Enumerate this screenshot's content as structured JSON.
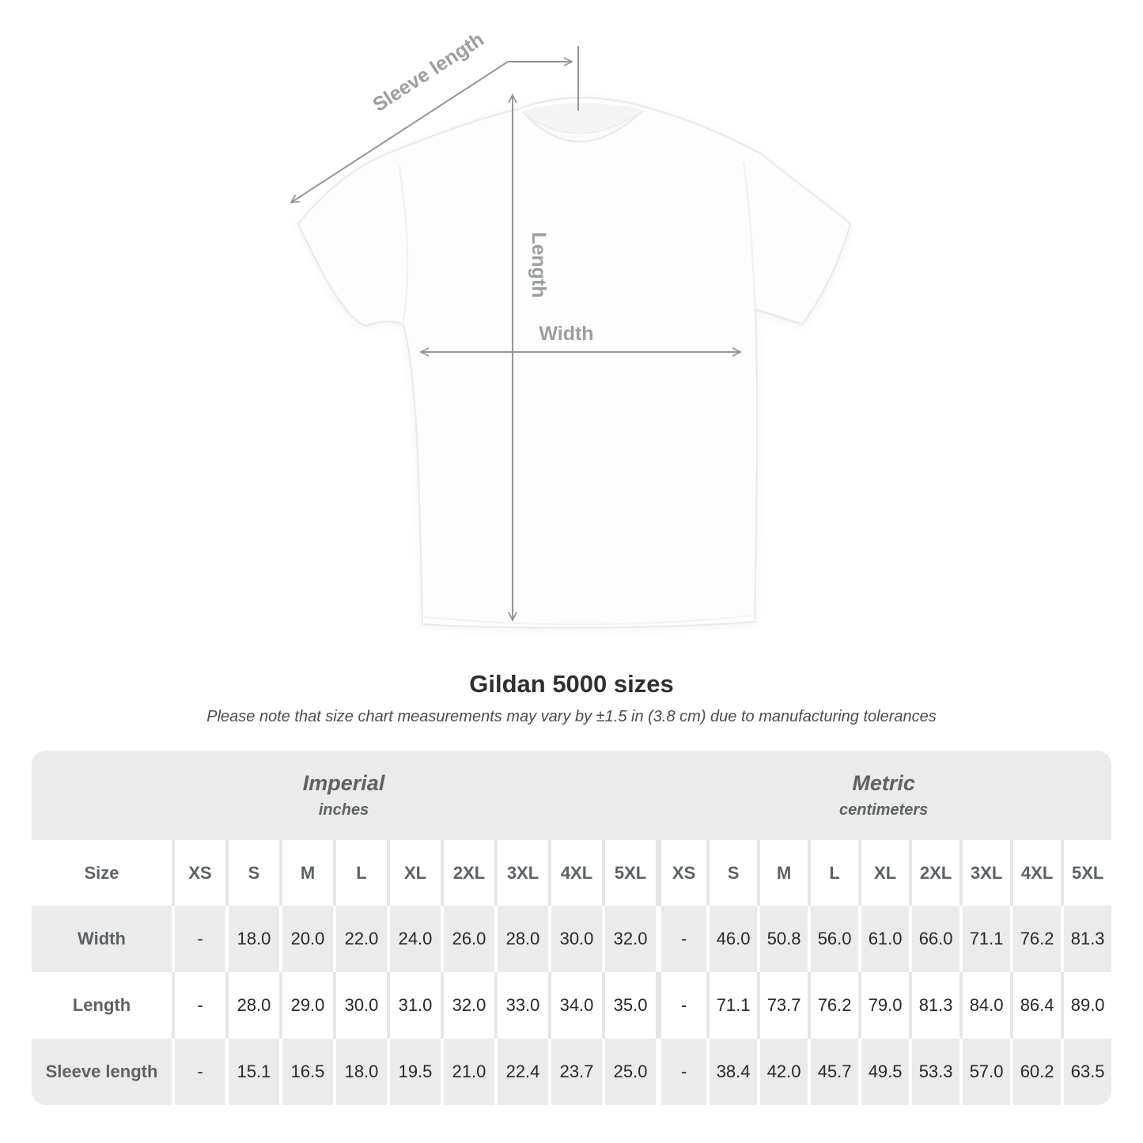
{
  "diagram": {
    "sleeve_length_label": "Sleeve length",
    "length_label": "Length",
    "width_label": "Width"
  },
  "header": {
    "title": "Gildan 5000 sizes",
    "subtitle": "Please note that size chart measurements may vary by ±1.5 in (3.8 cm) due to manufacturing tolerances"
  },
  "chart_data": {
    "type": "table",
    "title": "Gildan 5000 sizes",
    "note": "Please note that size chart measurements may vary by ±1.5 in (3.8 cm) due to manufacturing tolerances",
    "size_column_header": "Size",
    "sections": [
      {
        "name": "Imperial",
        "unit": "inches",
        "sizes": [
          "XS",
          "S",
          "M",
          "L",
          "XL",
          "2XL",
          "3XL",
          "4XL",
          "5XL"
        ]
      },
      {
        "name": "Metric",
        "unit": "centimeters",
        "sizes": [
          "XS",
          "S",
          "M",
          "L",
          "XL",
          "2XL",
          "3XL",
          "4XL",
          "5XL"
        ]
      }
    ],
    "rows": [
      {
        "label": "Width",
        "imperial": [
          "-",
          "18.0",
          "20.0",
          "22.0",
          "24.0",
          "26.0",
          "28.0",
          "30.0",
          "32.0"
        ],
        "metric": [
          "-",
          "46.0",
          "50.8",
          "56.0",
          "61.0",
          "66.0",
          "71.1",
          "76.2",
          "81.3"
        ]
      },
      {
        "label": "Length",
        "imperial": [
          "-",
          "28.0",
          "29.0",
          "30.0",
          "31.0",
          "32.0",
          "33.0",
          "34.0",
          "35.0"
        ],
        "metric": [
          "-",
          "71.1",
          "73.7",
          "76.2",
          "79.0",
          "81.3",
          "84.0",
          "86.4",
          "89.0"
        ]
      },
      {
        "label": "Sleeve length",
        "imperial": [
          "-",
          "15.1",
          "16.5",
          "18.0",
          "19.5",
          "21.0",
          "22.4",
          "23.7",
          "25.0"
        ],
        "metric": [
          "-",
          "38.4",
          "42.0",
          "45.7",
          "49.5",
          "53.3",
          "57.0",
          "60.2",
          "63.5"
        ]
      }
    ]
  },
  "colors": {
    "row_gray": "#ebebeb",
    "header_text": "#5c6265",
    "data_text": "#26282b",
    "arrow_gray": "#909699",
    "shirt_label_gray": "#9a9ea1"
  }
}
